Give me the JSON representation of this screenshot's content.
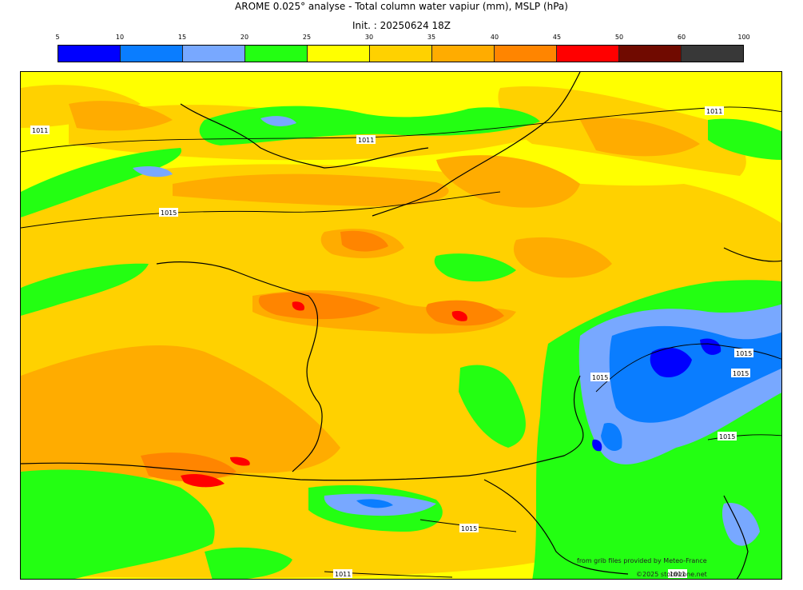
{
  "header": {
    "title": "AROME 0.025° analyse - Total column water vapiur (mm), MSLP (hPa)",
    "init": "Init. : 20250624 18Z"
  },
  "colorbar": {
    "ticks": [
      "5",
      "10",
      "15",
      "20",
      "25",
      "30",
      "35",
      "40",
      "45",
      "50",
      "60",
      "100"
    ],
    "colors": [
      "#0000ff",
      "#0a7dff",
      "#78a8ff",
      "#23ff12",
      "#ffff00",
      "#ffd100",
      "#ffac00",
      "#ff8500",
      "#ff0000",
      "#700a00",
      "#383838"
    ]
  },
  "isobars": {
    "labels": [
      "1011",
      "1011",
      "1011",
      "1015",
      "1015",
      "1015",
      "1015",
      "1015",
      "1011",
      "1015",
      "1011"
    ]
  },
  "credits": {
    "source": "from grib files provided by Meteo-France",
    "copyright": "©2025 stormzone.net"
  }
}
